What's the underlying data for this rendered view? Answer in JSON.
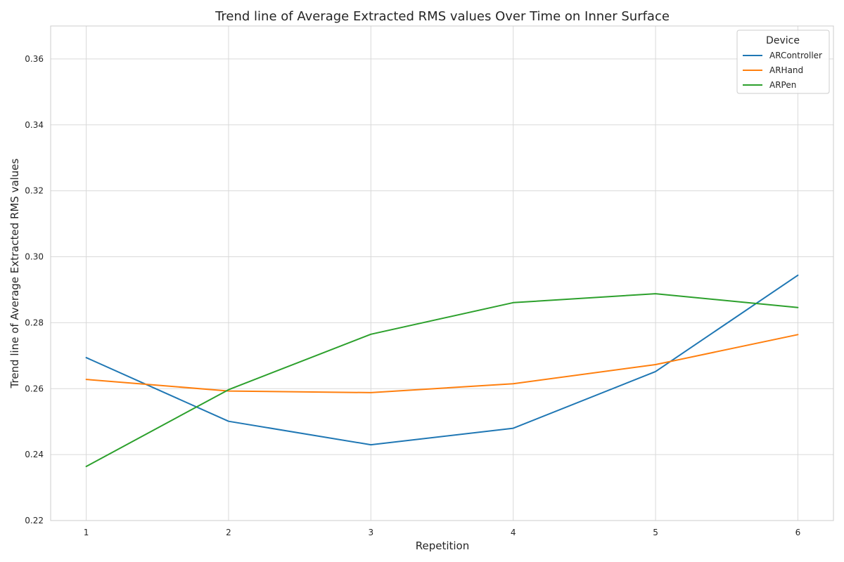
{
  "chart_data": {
    "type": "line",
    "title": "Trend line of Average Extracted RMS values Over Time on Inner Surface",
    "xlabel": "Repetition",
    "ylabel": "Trend line of Average Extracted RMS values",
    "x": [
      1,
      2,
      3,
      4,
      5,
      6
    ],
    "xlim": [
      0.75,
      6.25
    ],
    "ylim": [
      0.22,
      0.37
    ],
    "yticks": [
      0.22,
      0.24,
      0.26,
      0.28,
      0.3,
      0.32,
      0.34,
      0.36
    ],
    "ytick_labels": [
      "0.22",
      "0.24",
      "0.26",
      "0.28",
      "0.30",
      "0.32",
      "0.34",
      "0.36"
    ],
    "xtick_labels": [
      "1",
      "2",
      "3",
      "4",
      "5",
      "6"
    ],
    "grid": true,
    "legend": {
      "title": "Device",
      "position": "top-right"
    },
    "series": [
      {
        "name": "ARController",
        "color": "#1f77b4",
        "values": [
          0.2694,
          0.2501,
          0.243,
          0.248,
          0.2652,
          0.2944
        ]
      },
      {
        "name": "ARHand",
        "color": "#ff7f0e",
        "values": [
          0.2628,
          0.2593,
          0.2588,
          0.2615,
          0.2673,
          0.2764
        ]
      },
      {
        "name": "ARPen",
        "color": "#2ca02c",
        "values": [
          0.2364,
          0.2597,
          0.2765,
          0.2861,
          0.2888,
          0.2846
        ]
      }
    ]
  }
}
